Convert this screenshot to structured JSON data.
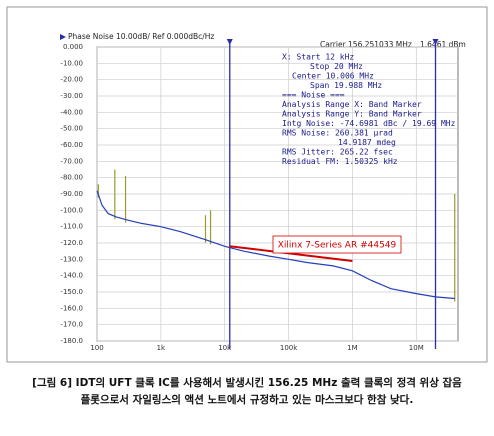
{
  "chart_data": {
    "type": "line",
    "title": "Phase Noise 10.00dB/ Ref 0.000dBc/Hz",
    "carrier": "Carrier 156.251033 MHz",
    "power": "1.6461 dBm",
    "info_lines": [
      "X: Start 12 kHz",
      "Stop 20 MHz",
      "Center 10.006 MHz",
      "Span 19.988 MHz",
      "=== Noise ===",
      "Analysis Range X: Band Marker",
      "Analysis Range Y: Band Marker",
      "Intg Noise: -74.6981 dBc / 19.69 MHz",
      "RMS Noise: 260.381 µrad",
      "14.9187 mdeg",
      "RMS Jitter: 265.22 fsec",
      "Residual FM: 1.50325 kHz"
    ],
    "log_x": true,
    "grid": true,
    "xlim": [
      100,
      45000000
    ],
    "xticks": [
      100,
      {
        "value": 1000,
        "label": "1k"
      },
      {
        "value": 10000,
        "label": "10k"
      },
      {
        "value": 100000,
        "label": "100k"
      },
      {
        "value": 1000000,
        "label": "1M"
      },
      {
        "value": 10000000,
        "label": "10M"
      }
    ],
    "ylim": [
      -180,
      0
    ],
    "yticks": [
      {
        "value": 0,
        "label": "0.000"
      },
      {
        "value": -10,
        "label": "-10.00"
      },
      {
        "value": -20,
        "label": "-20.00"
      },
      {
        "value": -30,
        "label": "-30.00"
      },
      {
        "value": -40,
        "label": "-40.00"
      },
      {
        "value": -50,
        "label": "-50.00"
      },
      {
        "value": -60,
        "label": "-60.00"
      },
      {
        "value": -70,
        "label": "-70.00"
      },
      {
        "value": -80,
        "label": "-80.00"
      },
      {
        "value": -90,
        "label": "-90.00"
      },
      {
        "value": -100,
        "label": "-100.0"
      },
      {
        "value": -110,
        "label": "-110.0"
      },
      {
        "value": -120,
        "label": "-120.0"
      },
      {
        "value": -130,
        "label": "-130.0"
      },
      {
        "value": -140,
        "label": "-140.0"
      },
      {
        "value": -150,
        "label": "-150.0"
      },
      {
        "value": -160,
        "label": "-160.0"
      },
      {
        "value": -170,
        "label": "-170.0"
      },
      {
        "value": -180,
        "label": "-180.0"
      }
    ],
    "series": [
      {
        "color": "#2340b8",
        "x": [
          100,
          120,
          150,
          200,
          300,
          500,
          1000,
          2000,
          5000,
          10000,
          20000,
          50000,
          100000,
          200000,
          500000,
          1000000,
          2000000,
          4000000,
          10000000,
          20000000,
          40000000
        ],
        "values": [
          -88,
          -97,
          -102,
          -104,
          -106,
          -108,
          -110,
          -113,
          -118,
          -122,
          -125,
          -128,
          -130,
          -132,
          -134,
          -137,
          -143,
          -148,
          -151,
          -153,
          -154
        ]
      }
    ],
    "spurs": {
      "color": "#9a9a30",
      "x": [
        105,
        190,
        280,
        5000,
        6000,
        40000000
      ],
      "values": [
        -84,
        -75,
        -79,
        -103,
        -100,
        -90
      ]
    },
    "markers": {
      "color": "#2b2bb0",
      "x": [
        12000,
        20000000
      ]
    },
    "annotation": {
      "text": "Xilinx 7-Series AR #44549",
      "color": "#d00000",
      "x": [
        12000,
        1000000
      ],
      "values": [
        -122,
        -131
      ]
    },
    "caption": [
      "[그림 6] IDT의 UFT 클록 IC를 사용해서 발생시킨 156.25 MHz 출력 클록의 정격 위상 잡음",
      "플롯으로서 자일링스의 액션 노트에서 규정하고 있는 마스크보다 한참 낮다."
    ]
  }
}
